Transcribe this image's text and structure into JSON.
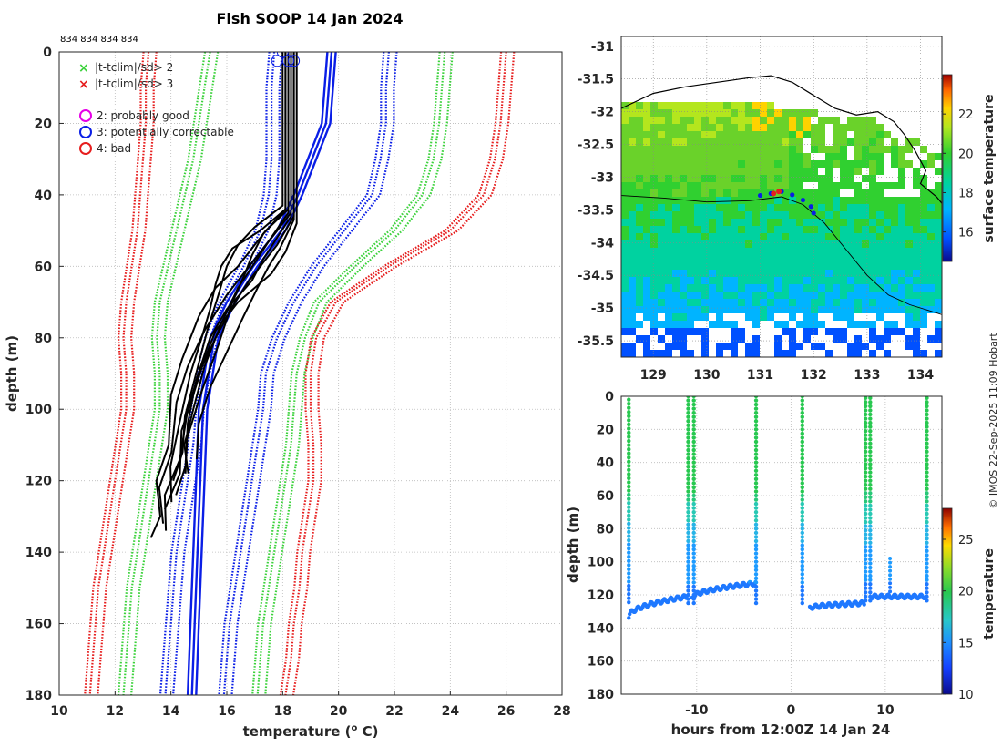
{
  "title": "Fish SOOP 14 Jan 2024",
  "credit": "© IMOS 22-Sep-2025 11:09 Hobart",
  "colors": {
    "black": "#000000",
    "blue": "#0a1ee6",
    "green": "#3cd23c",
    "red": "#e61e1e",
    "magenta": "#e600e6"
  },
  "chart_data": [
    {
      "name": "profile-panel",
      "type": "line",
      "xlabel": "temperature (",
      "xlabel_sup": "o",
      "xlabel_end": " C)",
      "ylabel": "depth (m)",
      "xlim": [
        10,
        28
      ],
      "ylim": [
        180,
        0
      ],
      "xticks": [
        "10",
        "12",
        "14",
        "16",
        "18",
        "20",
        "22",
        "24",
        "26",
        "28"
      ],
      "yticks": [
        "0",
        "20",
        "40",
        "60",
        "80",
        "100",
        "120",
        "140",
        "160",
        "180"
      ],
      "top_labels": "834 834 834 834",
      "legend": [
        {
          "marker": "x",
          "color": "green",
          "label": "|t-tclim|/sd> 2"
        },
        {
          "marker": "x",
          "color": "red",
          "label": "|t-tclim|/sd> 3"
        },
        {
          "marker": "o",
          "color": "magenta",
          "label": "2: probably good"
        },
        {
          "marker": "o",
          "color": "blue",
          "label": "3: potentially correctable"
        },
        {
          "marker": "o",
          "color": "red",
          "label": "4: bad"
        }
      ],
      "climatology": {
        "depth": [
          0,
          10,
          20,
          30,
          40,
          50,
          60,
          70,
          80,
          90,
          100,
          110,
          120,
          130,
          140,
          150,
          160,
          170,
          180
        ],
        "red_left": [
          13.2,
          13.1,
          13.1,
          13.0,
          12.9,
          12.8,
          12.6,
          12.4,
          12.3,
          12.4,
          12.4,
          12.2,
          12.0,
          11.8,
          11.6,
          11.4,
          11.3,
          11.2,
          11.1
        ],
        "green_left": [
          15.4,
          15.2,
          15.0,
          14.8,
          14.5,
          14.2,
          13.9,
          13.6,
          13.5,
          13.6,
          13.6,
          13.4,
          13.2,
          13.0,
          12.8,
          12.6,
          12.5,
          12.4,
          12.3
        ],
        "blue_left": [
          17.7,
          17.6,
          17.6,
          17.6,
          17.5,
          17.2,
          16.6,
          15.9,
          15.4,
          15.1,
          14.9,
          14.8,
          14.6,
          14.4,
          14.2,
          14.1,
          14.0,
          13.9,
          13.8
        ],
        "blue_right": [
          21.8,
          21.7,
          21.7,
          21.5,
          21.2,
          20.2,
          19.2,
          18.4,
          17.8,
          17.4,
          17.3,
          17.1,
          16.9,
          16.7,
          16.5,
          16.3,
          16.1,
          16.0,
          15.9
        ],
        "green_right": [
          23.8,
          23.7,
          23.6,
          23.4,
          23.0,
          22.0,
          20.6,
          19.3,
          18.8,
          18.5,
          18.4,
          18.3,
          18.1,
          17.9,
          17.7,
          17.5,
          17.3,
          17.2,
          17.1
        ],
        "red_right": [
          26.0,
          25.9,
          25.8,
          25.6,
          25.2,
          24.0,
          21.8,
          19.9,
          19.2,
          19.0,
          19.0,
          19.1,
          19.1,
          18.9,
          18.7,
          18.6,
          18.4,
          18.3,
          18.1
        ]
      },
      "reference_profiles": {
        "depth": [
          0,
          20,
          40,
          50,
          60,
          70,
          80,
          100,
          120,
          140,
          160,
          180
        ],
        "offsets": [
          0,
          0.15,
          0.3
        ],
        "temps": [
          19.6,
          19.4,
          18.4,
          17.8,
          16.8,
          16.0,
          15.4,
          15.0,
          14.9,
          14.8,
          14.7,
          14.6
        ]
      },
      "observed_profiles": [
        {
          "depth": [
            0,
            44,
            50,
            56,
            60,
            66,
            74,
            86,
            96,
            110,
            120,
            130,
            136
          ],
          "temps": [
            18.2,
            18.2,
            17.4,
            16.8,
            16.4,
            15.6,
            15.0,
            14.4,
            14.0,
            13.8,
            13.6,
            13.5,
            13.4
          ]
        },
        {
          "depth": [
            0,
            45,
            52,
            58,
            62,
            68,
            78,
            88,
            98,
            112,
            122,
            132
          ],
          "temps": [
            18.3,
            18.3,
            17.6,
            17.0,
            16.6,
            16.0,
            15.2,
            14.6,
            14.2,
            13.9,
            13.7,
            13.6
          ]
        },
        {
          "depth": [
            0,
            46,
            54,
            58,
            64,
            70,
            80,
            90,
            100,
            114,
            124,
            134
          ],
          "temps": [
            18.4,
            18.4,
            17.8,
            17.4,
            16.8,
            16.3,
            15.6,
            15.0,
            14.6,
            14.2,
            13.9,
            13.7
          ]
        },
        {
          "depth": [
            0,
            44,
            50,
            55,
            60,
            65,
            72,
            80,
            90,
            104,
            116,
            126
          ],
          "temps": [
            18.1,
            18.1,
            17.2,
            16.2,
            15.8,
            15.6,
            15.4,
            15.1,
            14.7,
            14.3,
            14.1,
            13.9
          ]
        },
        {
          "depth": [
            0,
            48,
            56,
            62,
            70,
            78,
            86,
            96,
            106,
            118,
            128
          ],
          "temps": [
            18.5,
            18.5,
            18.1,
            17.6,
            16.4,
            15.6,
            15.2,
            14.8,
            14.5,
            14.2,
            13.9
          ]
        },
        {
          "depth": [
            0,
            46,
            52,
            58,
            64,
            72,
            80,
            92,
            104,
            116,
            124
          ],
          "temps": [
            18.3,
            18.3,
            17.8,
            17.3,
            16.9,
            16.0,
            15.4,
            14.9,
            14.6,
            14.4,
            14.3
          ]
        },
        {
          "depth": [
            0,
            47,
            55,
            60,
            66,
            74,
            84,
            94,
            104,
            114
          ],
          "temps": [
            18.4,
            18.4,
            17.9,
            17.5,
            17.1,
            16.6,
            16.0,
            15.4,
            15.0,
            14.8
          ]
        },
        {
          "depth": [
            0,
            45,
            53,
            59,
            66,
            76,
            88,
            100,
            110,
            118
          ],
          "temps": [
            18.2,
            18.2,
            17.5,
            17.0,
            16.4,
            15.8,
            15.2,
            14.8,
            14.6,
            14.5
          ]
        },
        {
          "depth": [
            0,
            43,
            49,
            54,
            60,
            68,
            78,
            90,
            102,
            112,
            120
          ],
          "temps": [
            18.0,
            18.0,
            17.0,
            16.4,
            16.0,
            15.7,
            15.3,
            14.9,
            14.5,
            14.3,
            14.2
          ]
        },
        {
          "depth": [
            0,
            44,
            51,
            57,
            63,
            70,
            82,
            95,
            108,
            118
          ],
          "temps": [
            18.1,
            18.1,
            17.3,
            16.9,
            16.6,
            16.2,
            15.7,
            15.1,
            14.7,
            14.4
          ]
        }
      ],
      "flag_circles": [
        {
          "t": 18.0,
          "d": 0
        },
        {
          "t": 17.8,
          "d": 2.5
        },
        {
          "t": 18.2,
          "d": 2.5
        },
        {
          "t": 18.4,
          "d": 2.5
        }
      ]
    },
    {
      "name": "sst-map",
      "type": "heatmap",
      "xlim": [
        128.4,
        134.4
      ],
      "ylim": [
        -35.75,
        -30.85
      ],
      "xticks": [
        "129",
        "130",
        "131",
        "132",
        "133",
        "134"
      ],
      "yticks": [
        "-31",
        "-31.5",
        "-32",
        "-32.5",
        "-33",
        "-33.5",
        "-34",
        "-34.5",
        "-35",
        "-35.5"
      ],
      "colorbar_label": "surface temperature",
      "colorbar_range": [
        14.5,
        24
      ],
      "colorbar_ticks": [
        "16",
        "18",
        "20",
        "22"
      ],
      "colorbar_tick_values": [
        16,
        18,
        20,
        22
      ],
      "track": {
        "lon": [
          131.0,
          131.2,
          131.4,
          131.6,
          131.8,
          131.95,
          132.0
        ],
        "lat": [
          -33.28,
          -33.25,
          -33.22,
          -33.27,
          -33.35,
          -33.45,
          -33.55
        ]
      },
      "flag_points": [
        {
          "lon": 131.25,
          "lat": -33.25
        },
        {
          "lon": 131.35,
          "lat": -33.22
        }
      ]
    },
    {
      "name": "time-depth",
      "type": "scatter",
      "xlabel": "hours from 12:00Z 14 Jan 24",
      "ylabel": "depth (m)",
      "xlim": [
        -18,
        16
      ],
      "ylim": [
        180,
        0
      ],
      "xticks": [
        {
          "v": -10,
          "label": "-10"
        },
        {
          "v": 0,
          "label": "0"
        },
        {
          "v": 10,
          "label": "10"
        }
      ],
      "yticks": [
        "0",
        "20",
        "40",
        "60",
        "80",
        "100",
        "120",
        "140",
        "160",
        "180"
      ],
      "colorbar_label": "temperature",
      "colorbar_range": [
        10,
        28
      ],
      "colorbar_ticks": [
        "10",
        "15",
        "20",
        "25"
      ],
      "colorbar_tick_values": [
        10,
        15,
        20,
        25
      ],
      "casts": [
        {
          "h0": -17.2,
          "h1": -11.0,
          "bottom_start": 133,
          "bottom_end": 121
        },
        {
          "h0": -10.5,
          "h1": -3.7,
          "bottom_start": 122,
          "bottom_end": 113
        },
        {
          "h0": 2.0,
          "h1": 7.8,
          "bottom_start": 128,
          "bottom_end": 125
        },
        {
          "h0": 8.6,
          "h1": 14.3,
          "bottom_start": 121,
          "bottom_end": 121
        }
      ],
      "spikes": [
        -17.2,
        -10.9,
        -10.3,
        -3.7,
        1.2,
        7.9,
        8.4,
        14.4
      ],
      "spike_tops": [
        2,
        0,
        0,
        0,
        0,
        1,
        1,
        1
      ],
      "small_spike": {
        "h": 10.5,
        "top": 98
      }
    }
  ]
}
